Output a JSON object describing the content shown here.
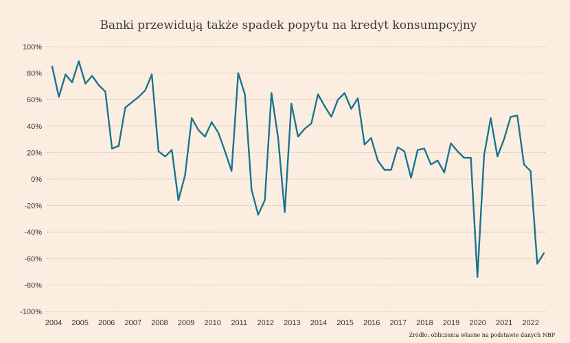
{
  "chart_data": {
    "type": "line",
    "title": "Banki przewidują także spadek popytu na kredyt konsumpcyjny",
    "xlabel": "",
    "ylabel": "",
    "ylim": [
      -100,
      100
    ],
    "yticks": [
      "100%",
      "80%",
      "60%",
      "40%",
      "20%",
      "0%",
      "-20%",
      "-40%",
      "-60%",
      "-80%",
      "-100%"
    ],
    "ytick_values": [
      100,
      80,
      60,
      40,
      20,
      0,
      -20,
      -40,
      -60,
      -80,
      -100
    ],
    "xticks": [
      "2004",
      "2005",
      "2006",
      "2007",
      "2008",
      "2009",
      "2010",
      "2011",
      "2012",
      "2013",
      "2014",
      "2015",
      "2016",
      "2017",
      "2018",
      "2019",
      "2020",
      "2021",
      "2022"
    ],
    "grid": "horizontal",
    "legend": "none",
    "source": "Źródło: obliczenia własne na podstawie danych NBP",
    "series": [
      {
        "color": "#1a7390",
        "values": [
          85,
          62,
          79,
          73,
          89,
          72,
          78,
          71,
          66,
          23,
          25,
          54,
          58,
          62,
          67,
          79,
          21,
          17,
          22,
          -16,
          3,
          46,
          37,
          32,
          43,
          35,
          21,
          6,
          80,
          64,
          -8,
          -27,
          -16,
          65,
          31,
          -25,
          57,
          32,
          38,
          42,
          64,
          55,
          47,
          60,
          65,
          53,
          61,
          26,
          31,
          14,
          7,
          7,
          24,
          21,
          1,
          22,
          23,
          11,
          14,
          5,
          27,
          21,
          16,
          16,
          -74,
          18,
          46,
          17,
          30,
          47,
          48,
          11,
          6,
          -64,
          -56
        ]
      }
    ]
  }
}
